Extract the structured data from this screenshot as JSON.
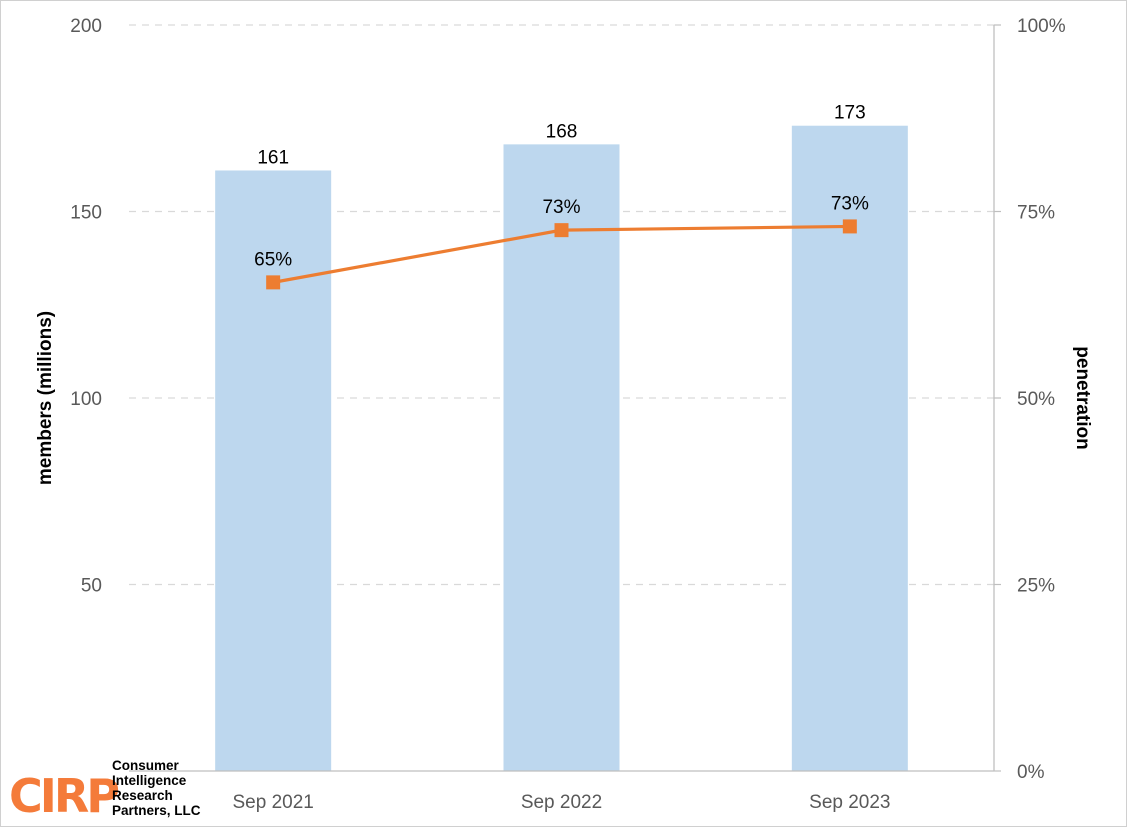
{
  "chart_data": {
    "type": "bar",
    "categories": [
      "Sep 2021",
      "Sep 2022",
      "Sep 2023"
    ],
    "series": [
      {
        "type": "bar",
        "axis": "left",
        "values": [
          161,
          168,
          173
        ],
        "labels": [
          "161",
          "168",
          "173"
        ],
        "color": "#bdd7ee"
      },
      {
        "type": "line",
        "axis": "right",
        "values": [
          0.655,
          0.725,
          0.73
        ],
        "labels": [
          "65%",
          "73%",
          "73%"
        ],
        "color": "#ed7d31"
      }
    ],
    "ylabel": "members (millions)",
    "y2label": "penetration",
    "ylim": [
      0,
      200
    ],
    "yticks": [
      "200",
      "150",
      "100",
      "50"
    ],
    "y2lim": [
      0,
      1
    ],
    "y2ticks": [
      "100%",
      "75%",
      "50%",
      "25%",
      "0%"
    ],
    "grid": true,
    "legend": "none"
  },
  "logo": {
    "mark": "CIRP",
    "lines": [
      "Consumer",
      "Intelligence",
      "Research",
      "Partners, LLC"
    ],
    "color": "#f47b3a"
  }
}
